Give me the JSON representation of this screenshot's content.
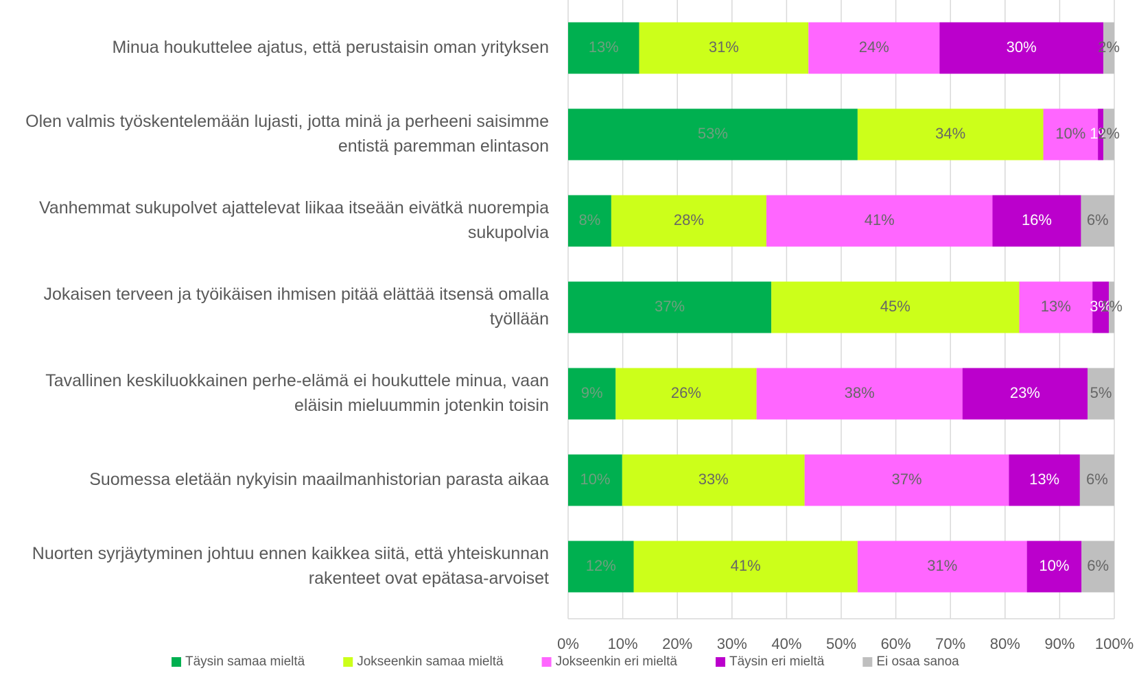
{
  "chart_data": {
    "type": "stacked_barh",
    "categories": [
      "Minua houkuttelee ajatus, että perustaisin oman yrityksen",
      "Olen valmis työskentelemään lujasti, jotta minä ja perheeni saisimme entistä paremman elintason",
      "Vanhemmat sukupolvet ajattelevat liikaa itseään eivätkä nuorempia sukupolvia",
      "Jokaisen terveen ja työikäisen ihmisen pitää elättää itsensä omalla työllään",
      "Tavallinen keskiluokkainen perhe-elämä ei houkuttele minua, vaan eläisin mieluummin jotenkin toisin",
      "Suomessa eletään nykyisin maailmanhistorian parasta aikaa",
      "Nuorten syrjäytyminen johtuu ennen kaikkea siitä, että yhteiskunnan rakenteet ovat epätasa-arvoiset"
    ],
    "series": [
      {
        "name": "Täysin samaa mieltä",
        "color": "#00b050",
        "label_color": "#6f9f7f",
        "values": [
          13,
          53,
          7.9,
          37.2,
          8.7,
          9.9,
          12
        ],
        "value_labels": [
          "13%",
          "53%",
          "8%",
          "37%",
          "9%",
          "10%",
          "12%"
        ]
      },
      {
        "name": "Jokseenkin samaa mieltä",
        "color": "#ccff1a",
        "label_color": "#666666",
        "values": [
          31,
          34,
          28.4,
          45.4,
          25.8,
          33.4,
          41
        ],
        "value_labels": [
          "31%",
          "34%",
          "28%",
          "45%",
          "26%",
          "33%",
          "41%"
        ]
      },
      {
        "name": "Jokseenkin eri mieltä",
        "color": "#ff66ff",
        "label_color": "#666666",
        "values": [
          24,
          10,
          41.4,
          13.4,
          37.7,
          37.4,
          31
        ],
        "value_labels": [
          "24%",
          "10%",
          "41%",
          "13%",
          "38%",
          "37%",
          "31%"
        ]
      },
      {
        "name": "Täysin eri mieltä",
        "color": "#bb00cc",
        "label_color": "#ffffff",
        "values": [
          30,
          1,
          16.2,
          3.0,
          22.9,
          13.0,
          10
        ],
        "value_labels": [
          "30%",
          "1%",
          "16%",
          "3%",
          "23%",
          "13%",
          "10%"
        ]
      },
      {
        "name": "Ei osaa sanoa",
        "color": "#bfbfbf",
        "label_color": "#666666",
        "values": [
          2,
          2,
          6.1,
          1.0,
          4.9,
          6.3,
          6
        ],
        "value_labels": [
          "2%",
          "2%",
          "6%",
          "1%",
          "5%",
          "6%",
          "6%"
        ]
      }
    ],
    "xlim": [
      0,
      100
    ],
    "xticks": [
      {
        "value": 0,
        "label": "0%"
      },
      {
        "value": 10,
        "label": "10%"
      },
      {
        "value": 20,
        "label": "20%"
      },
      {
        "value": 30,
        "label": "30%"
      },
      {
        "value": 40,
        "label": "40%"
      },
      {
        "value": 50,
        "label": "50%"
      },
      {
        "value": 60,
        "label": "60%"
      },
      {
        "value": 70,
        "label": "70%"
      },
      {
        "value": 80,
        "label": "80%"
      },
      {
        "value": 90,
        "label": "90%"
      },
      {
        "value": 100,
        "label": "100%"
      }
    ],
    "grid": true,
    "legend": "bottom"
  }
}
